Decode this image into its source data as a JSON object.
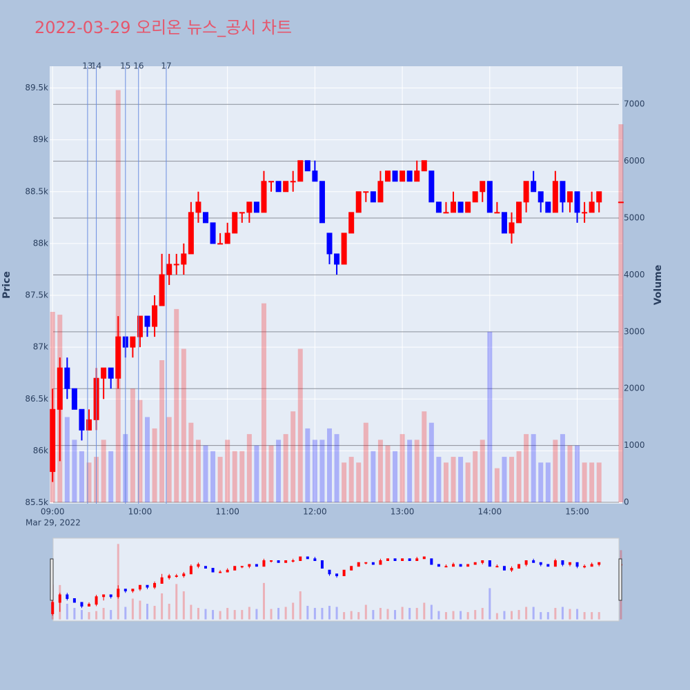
{
  "chart_data": {
    "type": "candlestick",
    "title": "2022-03-29 오리온 뉴스_공시 차트",
    "x": [
      "2022-03-29 09:00",
      "2022-03-29 09:05",
      "2022-03-29 09:10",
      "2022-03-29 09:15",
      "2022-03-29 09:20",
      "2022-03-29 09:25",
      "2022-03-29 09:30",
      "2022-03-29 09:35",
      "2022-03-29 09:40",
      "2022-03-29 09:45",
      "2022-03-29 09:50",
      "2022-03-29 09:55",
      "2022-03-29 10:00",
      "2022-03-29 10:05",
      "2022-03-29 10:10",
      "2022-03-29 10:15",
      "2022-03-29 10:20",
      "2022-03-29 10:25",
      "2022-03-29 10:30",
      "2022-03-29 10:35",
      "2022-03-29 10:40",
      "2022-03-29 10:45",
      "2022-03-29 10:50",
      "2022-03-29 10:55",
      "2022-03-29 11:00",
      "2022-03-29 11:05",
      "2022-03-29 11:10",
      "2022-03-29 11:15",
      "2022-03-29 11:20",
      "2022-03-29 11:25",
      "2022-03-29 11:30",
      "2022-03-29 11:35",
      "2022-03-29 11:40",
      "2022-03-29 11:45",
      "2022-03-29 11:50",
      "2022-03-29 11:55",
      "2022-03-29 12:00",
      "2022-03-29 12:05",
      "2022-03-29 12:10",
      "2022-03-29 12:15",
      "2022-03-29 12:20",
      "2022-03-29 12:25",
      "2022-03-29 12:30",
      "2022-03-29 12:35",
      "2022-03-29 12:40",
      "2022-03-29 12:45",
      "2022-03-29 12:50",
      "2022-03-29 12:55",
      "2022-03-29 13:00",
      "2022-03-29 13:05",
      "2022-03-29 13:10",
      "2022-03-29 13:15",
      "2022-03-29 13:20",
      "2022-03-29 13:25",
      "2022-03-29 13:30",
      "2022-03-29 13:35",
      "2022-03-29 13:40",
      "2022-03-29 13:45",
      "2022-03-29 13:50",
      "2022-03-29 13:55",
      "2022-03-29 14:00",
      "2022-03-29 14:05",
      "2022-03-29 14:10",
      "2022-03-29 14:15",
      "2022-03-29 14:20",
      "2022-03-29 14:25",
      "2022-03-29 14:30",
      "2022-03-29 14:35",
      "2022-03-29 14:40",
      "2022-03-29 14:45",
      "2022-03-29 14:50",
      "2022-03-29 14:55",
      "2022-03-29 15:00",
      "2022-03-29 15:05",
      "2022-03-29 15:10",
      "2022-03-29 15:15",
      "2022-03-29 15:30"
    ],
    "open": [
      85800,
      86400,
      86800,
      86600,
      86400,
      86200,
      86300,
      86700,
      86800,
      86700,
      87100,
      87000,
      87100,
      87300,
      87200,
      87400,
      87700,
      87800,
      87800,
      87900,
      88300,
      88300,
      88200,
      88000,
      88000,
      88100,
      88300,
      88300,
      88400,
      88300,
      88600,
      88600,
      88500,
      88600,
      88600,
      88800,
      88700,
      88600,
      88100,
      87900,
      87800,
      88100,
      88300,
      88500,
      88500,
      88400,
      88600,
      88700,
      88600,
      88700,
      88600,
      88700,
      88700,
      88400,
      88300,
      88300,
      88400,
      88300,
      88400,
      88500,
      88600,
      88300,
      88300,
      88100,
      88200,
      88400,
      88600,
      88500,
      88400,
      88300,
      88600,
      88400,
      88500,
      88300,
      88300,
      88400,
      88400
    ],
    "high": [
      86600,
      86900,
      86900,
      86600,
      86400,
      86400,
      86800,
      86800,
      86800,
      87300,
      87100,
      87100,
      87300,
      87300,
      87500,
      87900,
      87900,
      87900,
      88000,
      88400,
      88500,
      88300,
      88200,
      88100,
      88200,
      88300,
      88300,
      88400,
      88400,
      88700,
      88600,
      88600,
      88600,
      88700,
      88800,
      88800,
      88800,
      88600,
      88100,
      87900,
      88100,
      88300,
      88500,
      88500,
      88500,
      88700,
      88700,
      88700,
      88700,
      88700,
      88800,
      88800,
      88700,
      88400,
      88400,
      88500,
      88400,
      88400,
      88500,
      88600,
      88600,
      88400,
      88300,
      88300,
      88400,
      88600,
      88700,
      88500,
      88400,
      88700,
      88600,
      88500,
      88500,
      88400,
      88500,
      88500,
      88400
    ],
    "low": [
      85700,
      85900,
      86500,
      86400,
      86100,
      86200,
      86200,
      86500,
      86600,
      86600,
      86900,
      86900,
      87000,
      87100,
      87100,
      87400,
      87600,
      87700,
      87700,
      87900,
      88200,
      88200,
      88000,
      88000,
      88000,
      88100,
      88200,
      88200,
      88300,
      88300,
      88500,
      88500,
      88500,
      88500,
      88600,
      88700,
      88600,
      88200,
      87800,
      87700,
      87800,
      88100,
      88300,
      88400,
      88400,
      88400,
      88600,
      88600,
      88600,
      88600,
      88600,
      88700,
      88400,
      88300,
      88300,
      88300,
      88300,
      88300,
      88400,
      88400,
      88300,
      88300,
      88100,
      88000,
      88200,
      88300,
      88500,
      88300,
      88300,
      88300,
      88300,
      88300,
      88200,
      88200,
      88300,
      88300,
      88400
    ],
    "close": [
      86400,
      86800,
      86600,
      86400,
      86200,
      86300,
      86700,
      86800,
      86700,
      87100,
      87000,
      87100,
      87300,
      87200,
      87400,
      87700,
      87800,
      87800,
      87900,
      88300,
      88400,
      88200,
      88000,
      88000,
      88100,
      88300,
      88300,
      88400,
      88300,
      88600,
      88600,
      88500,
      88600,
      88600,
      88800,
      88700,
      88600,
      88200,
      87900,
      87800,
      88100,
      88300,
      88500,
      88500,
      88400,
      88600,
      88700,
      88600,
      88700,
      88600,
      88700,
      88800,
      88400,
      88300,
      88300,
      88400,
      88300,
      88400,
      88500,
      88600,
      88300,
      88300,
      88100,
      88200,
      88400,
      88600,
      88500,
      88400,
      88300,
      88600,
      88400,
      88500,
      88300,
      88300,
      88400,
      88500,
      88400
    ],
    "volume": [
      3350,
      3300,
      1500,
      1100,
      900,
      700,
      800,
      1100,
      900,
      7250,
      1200,
      2000,
      1800,
      1500,
      1300,
      2500,
      1500,
      3400,
      2700,
      1400,
      1100,
      1000,
      900,
      800,
      1100,
      900,
      900,
      1200,
      1000,
      3500,
      1000,
      1100,
      1200,
      1600,
      2700,
      1300,
      1100,
      1100,
      1300,
      1200,
      700,
      800,
      700,
      1400,
      900,
      1100,
      1000,
      900,
      1200,
      1100,
      1100,
      1600,
      1400,
      800,
      700,
      800,
      800,
      700,
      900,
      1100,
      3000,
      600,
      800,
      800,
      900,
      1200,
      1200,
      700,
      700,
      1100,
      1200,
      1000,
      1000,
      700,
      700,
      700,
      6650
    ],
    "increasing_color": "#ff0000",
    "decreasing_color": "#0000ff",
    "xlim": [
      "2022-03-29 08:58",
      "2022-03-29 15:31"
    ],
    "xticks": [
      {
        "value": "2022-03-29 09:00",
        "label": "09:00"
      },
      {
        "value": "2022-03-29 10:00",
        "label": "10:00"
      },
      {
        "value": "2022-03-29 11:00",
        "label": "11:00"
      },
      {
        "value": "2022-03-29 12:00",
        "label": "12:00"
      },
      {
        "value": "2022-03-29 13:00",
        "label": "13:00"
      },
      {
        "value": "2022-03-29 14:00",
        "label": "14:00"
      },
      {
        "value": "2022-03-29 15:00",
        "label": "15:00"
      }
    ],
    "x_date_label": "Mar 29, 2022",
    "y_title": "Price",
    "ylim": [
      85490,
      89710
    ],
    "yticks": [
      {
        "value": 85500,
        "label": "85.5k"
      },
      {
        "value": 86000,
        "label": "86k"
      },
      {
        "value": 86500,
        "label": "86.5k"
      },
      {
        "value": 87000,
        "label": "87k"
      },
      {
        "value": 87500,
        "label": "87.5k"
      },
      {
        "value": 88000,
        "label": "88k"
      },
      {
        "value": 88500,
        "label": "88.5k"
      },
      {
        "value": 89000,
        "label": "89k"
      },
      {
        "value": 89500,
        "label": "89.5k"
      }
    ],
    "y2_title": "Volume",
    "y2lim": [
      -24,
      7670
    ],
    "y2ticks": [
      0,
      1000,
      2000,
      3000,
      4000,
      5000,
      6000,
      7000
    ],
    "news_markers": [
      {
        "x": "2022-03-29 09:24",
        "label": "13"
      },
      {
        "x": "2022-03-29 09:30",
        "label": "14"
      },
      {
        "x": "2022-03-29 09:50",
        "label": "15"
      },
      {
        "x": "2022-03-29 09:59",
        "label": "16"
      },
      {
        "x": "2022-03-29 10:18",
        "label": "17"
      }
    ],
    "grid": true,
    "rangeslider": true
  }
}
